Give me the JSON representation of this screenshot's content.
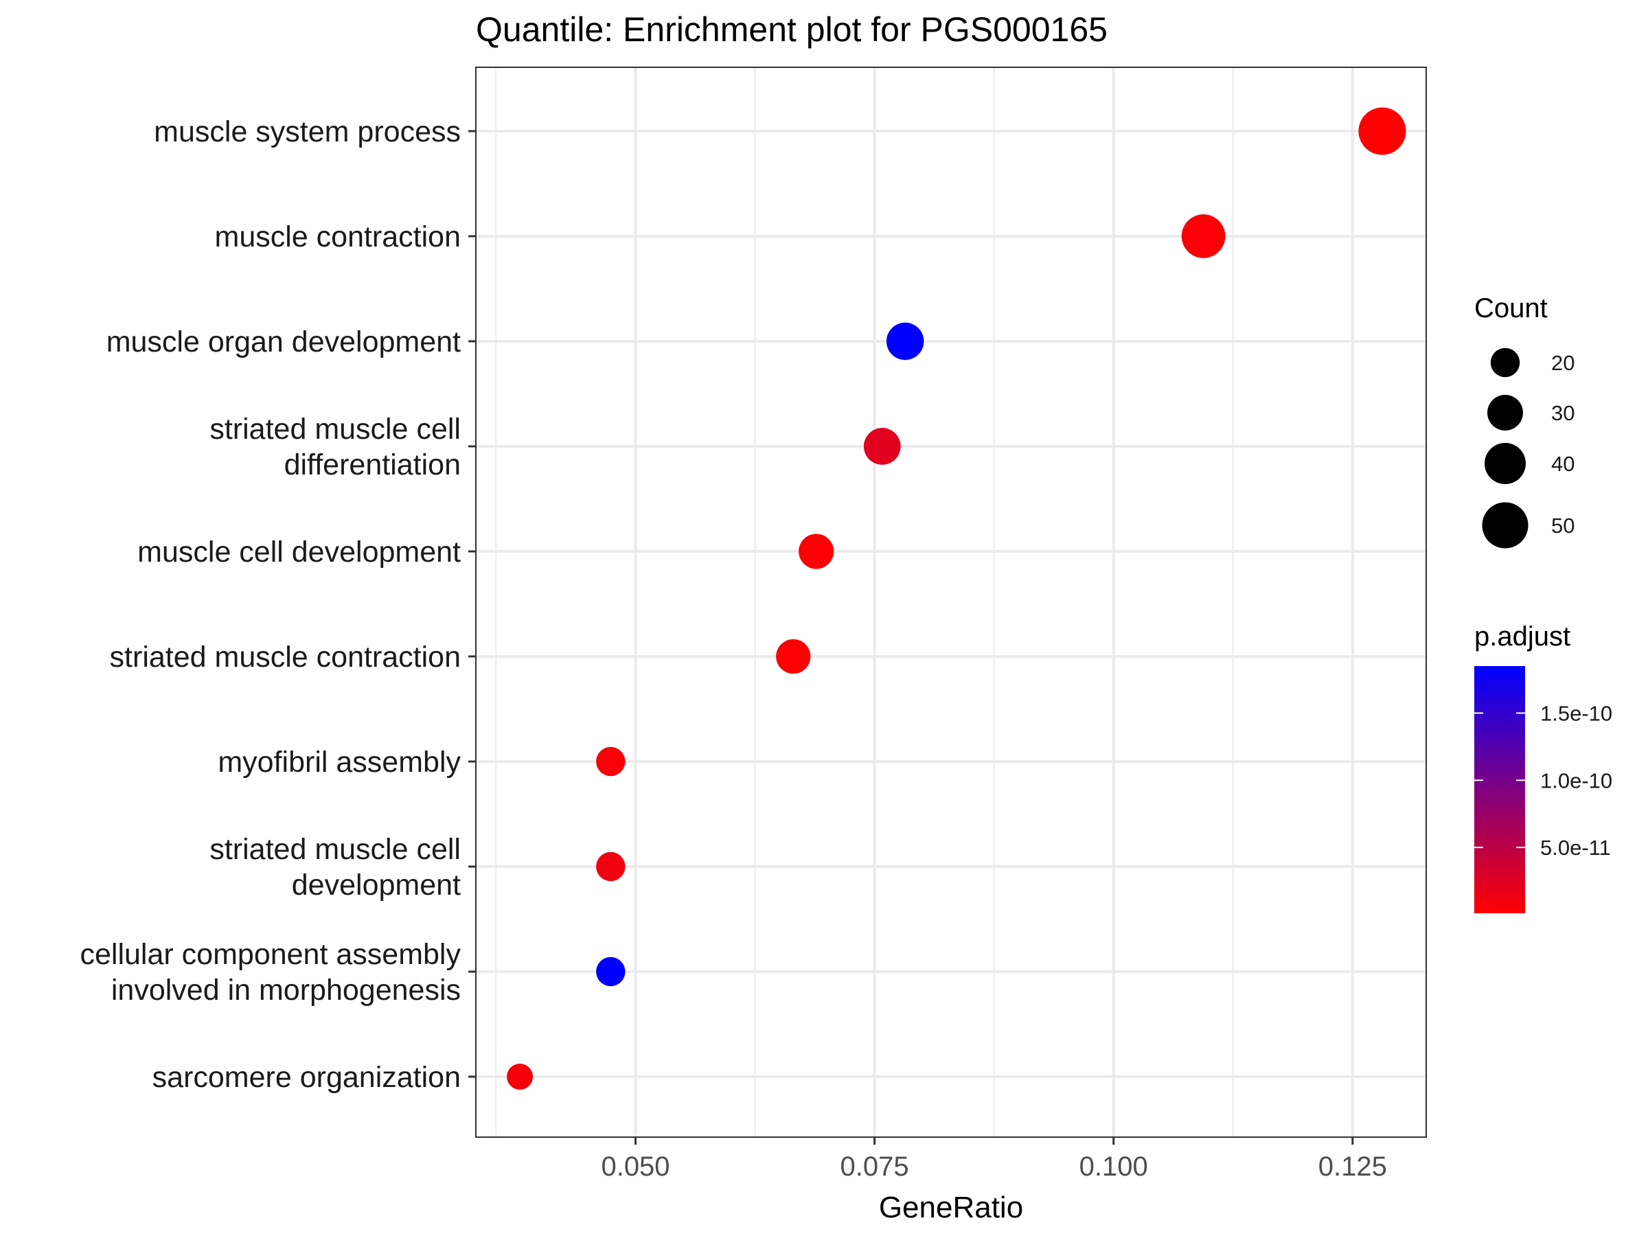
{
  "chart_data": {
    "type": "scatter",
    "title": "Quantile: Enrichment plot for PGS000165",
    "xlabel": "GeneRatio",
    "ylabel": "",
    "xlim": [
      0.0333,
      0.1327
    ],
    "x_ticks": [
      {
        "value": 0.05,
        "label": "0.050"
      },
      {
        "value": 0.075,
        "label": "0.075"
      },
      {
        "value": 0.1,
        "label": "0.100"
      },
      {
        "value": 0.125,
        "label": "0.125"
      }
    ],
    "grid": true,
    "categories": [
      [
        "muscle system process"
      ],
      [
        "muscle contraction"
      ],
      [
        "muscle organ development"
      ],
      [
        "striated muscle cell",
        "differentiation"
      ],
      [
        "muscle cell development"
      ],
      [
        "striated muscle contraction"
      ],
      [
        "myofibril assembly"
      ],
      [
        "striated muscle cell",
        "development"
      ],
      [
        "cellular component assembly",
        "involved in morphogenesis"
      ],
      [
        "sarcomere organization"
      ]
    ],
    "points": [
      {
        "gene_ratio": 0.1281,
        "count": 53,
        "p_adjust": 1e-12
      },
      {
        "gene_ratio": 0.1094,
        "count": 45,
        "p_adjust": 5e-12
      },
      {
        "gene_ratio": 0.0782,
        "count": 33,
        "p_adjust": 1.85e-10
      },
      {
        "gene_ratio": 0.0758,
        "count": 32,
        "p_adjust": 2.3e-11
      },
      {
        "gene_ratio": 0.0689,
        "count": 29,
        "p_adjust": 4e-12
      },
      {
        "gene_ratio": 0.0665,
        "count": 28,
        "p_adjust": 3e-12
      },
      {
        "gene_ratio": 0.0474,
        "count": 20,
        "p_adjust": 6e-12
      },
      {
        "gene_ratio": 0.0474,
        "count": 20,
        "p_adjust": 1.2e-11
      },
      {
        "gene_ratio": 0.0474,
        "count": 20,
        "p_adjust": 1.85e-10
      },
      {
        "gene_ratio": 0.0379,
        "count": 16,
        "p_adjust": 8e-12
      }
    ],
    "legend_size": {
      "title": "Count",
      "entries": [
        {
          "count": 20,
          "label": "20"
        },
        {
          "count": 30,
          "label": "30"
        },
        {
          "count": 40,
          "label": "40"
        },
        {
          "count": 50,
          "label": "50"
        }
      ]
    },
    "legend_color": {
      "title": "p.adjust",
      "range": [
        1e-12,
        1.85e-10
      ],
      "low_color": "#ff0000",
      "high_color": "#0000ff",
      "ticks": [
        {
          "value": 1.5e-10,
          "label": "1.5e-10"
        },
        {
          "value": 1e-10,
          "label": "1.0e-10"
        },
        {
          "value": 5e-11,
          "label": "5.0e-11"
        }
      ]
    },
    "legend_placement": "right"
  }
}
